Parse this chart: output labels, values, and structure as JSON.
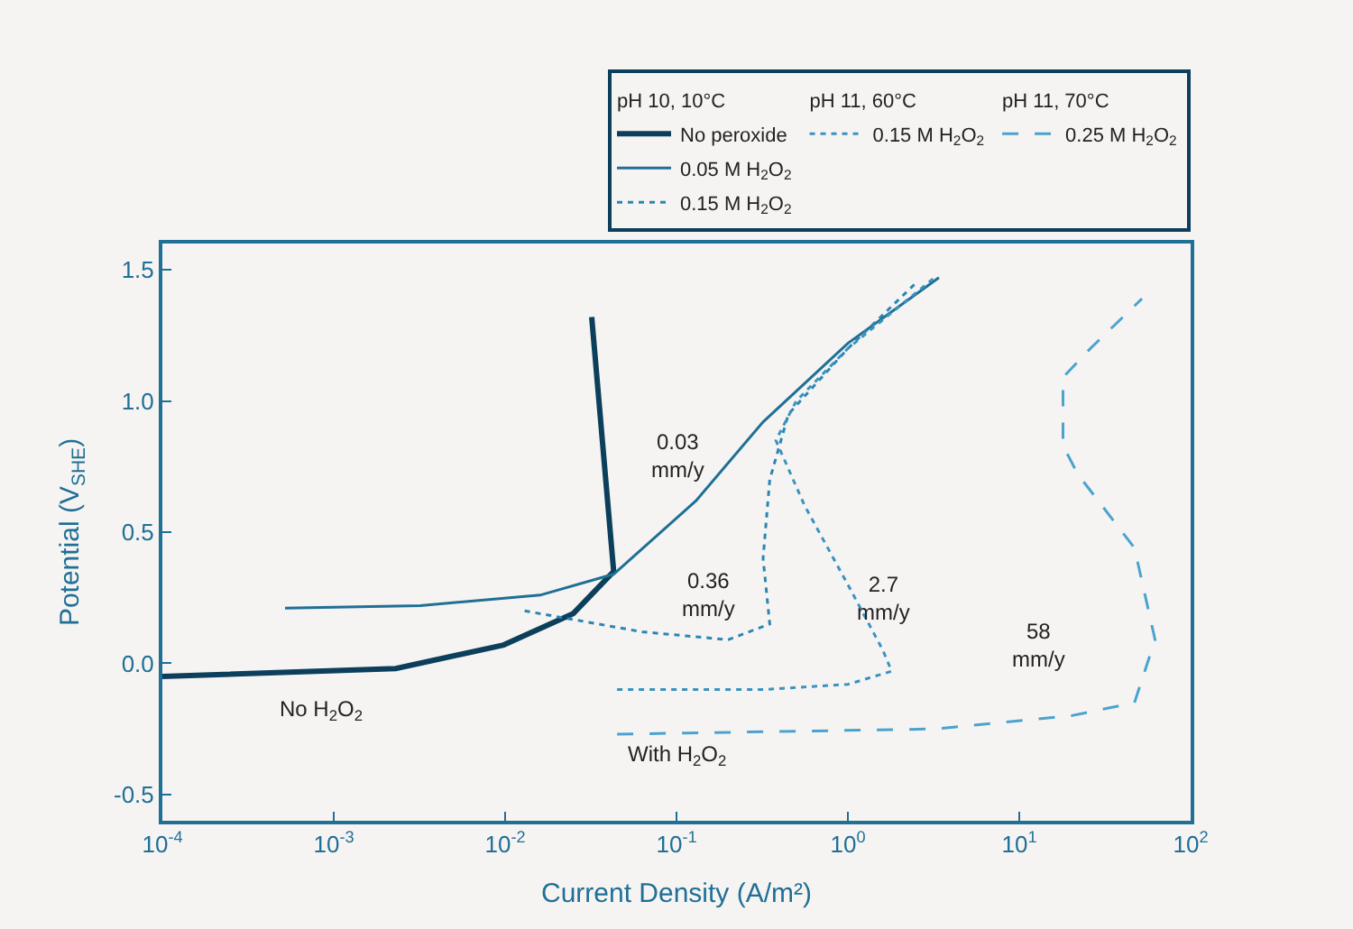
{
  "chart_data": {
    "type": "line",
    "xlabel": "Current Density (A/m²)",
    "ylabel": "Potential (V$_{SHE}$)",
    "log": "x",
    "xlim": [
      0.0001,
      100
    ],
    "xticks": [
      {
        "value": 0.0001,
        "label": "10$^{-4}$"
      },
      {
        "value": 0.001,
        "label": "10$^{-3}$"
      },
      {
        "value": 0.01,
        "label": "10$^{-2}$"
      },
      {
        "value": 0.1,
        "label": "10$^{-1}$"
      },
      {
        "value": 1,
        "label": "10$^{0}$"
      },
      {
        "value": 10,
        "label": "10$^{1}$"
      },
      {
        "value": 100,
        "label": "10$^{2}$"
      }
    ],
    "ylim": [
      -0.6,
      1.6
    ],
    "yticks": [
      {
        "value": -0.5,
        "label": "-0.5"
      },
      {
        "value": 0,
        "label": "0.0"
      },
      {
        "value": 0.5,
        "label": "0.5"
      },
      {
        "value": 1,
        "label": "1.0"
      },
      {
        "value": 1.5,
        "label": "1.5"
      }
    ],
    "grid": false,
    "legend": "top right",
    "marker": "none",
    "series": [
      {
        "name": "No peroxide",
        "color": "#0b3f5c",
        "line_style": "solid",
        "x": [
          0.0001,
          0.0023,
          0.0098,
          0.025,
          0.043,
          0.039,
          0.032
        ],
        "values": [
          -0.05,
          -0.02,
          0.07,
          0.19,
          0.35,
          0.67,
          1.32
        ]
      },
      {
        "name": "0.05 M H$_{2}$O$_{2}$",
        "color": "#1f6f96",
        "line_style": "solid",
        "x": [
          0.00052,
          0.0032,
          0.016,
          0.043,
          0.13,
          0.32,
          1.0,
          3.4
        ],
        "values": [
          0.21,
          0.22,
          0.26,
          0.34,
          0.62,
          0.92,
          1.22,
          1.47
        ]
      },
      {
        "name": "0.15 M H$_{2}$O$_{2}$",
        "color": "#2a86b3",
        "line_style": "dotted",
        "x": [
          0.013,
          0.063,
          0.2,
          0.35,
          0.32,
          0.35,
          0.45,
          1.0,
          2.5
        ],
        "values": [
          0.2,
          0.12,
          0.09,
          0.15,
          0.4,
          0.7,
          0.95,
          1.2,
          1.45
        ]
      },
      {
        "name": "0.15 M H$_{2}$O$_{2}$",
        "color": "#3a93bf",
        "line_style": "dotted",
        "x": [
          0.045,
          0.32,
          1.0,
          1.8,
          1.6,
          1.0,
          0.56,
          0.38,
          0.5,
          1.0,
          3.2
        ],
        "values": [
          -0.1,
          -0.1,
          -0.08,
          -0.03,
          0.05,
          0.3,
          0.6,
          0.85,
          1.0,
          1.2,
          1.47
        ]
      },
      {
        "name": "0.25 M H$_{2}$O$_{2}$",
        "color": "#4aa3cf",
        "line_style": "dashed",
        "x": [
          0.045,
          3.2,
          20,
          47,
          62,
          47,
          22,
          18,
          18,
          26,
          52
        ],
        "values": [
          -0.27,
          -0.25,
          -0.2,
          -0.15,
          0.09,
          0.44,
          0.72,
          0.83,
          1.09,
          1.2,
          1.39
        ]
      }
    ],
    "annotations": [
      "pH 10, 10°C",
      "pH 11, 60°C",
      "pH 11, 70°C",
      "0.03\nmm/y",
      "0.36\nmm/y",
      "2.7\nmm/y",
      "58\nmm/y",
      "No H$_{2}$O$_{2}$",
      "With H$_{2}$O$_{2}$"
    ]
  }
}
